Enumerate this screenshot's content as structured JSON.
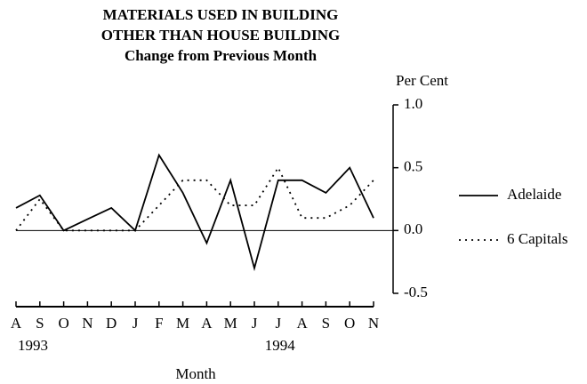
{
  "chart_data": {
    "type": "line",
    "title": "MATERIALS USED IN BUILDING",
    "title_line2": "OTHER THAN HOUSE BUILDING",
    "subtitle": "Change from Previous Month",
    "y_label": "Per Cent",
    "x_label": "Month",
    "categories": [
      "A",
      "S",
      "O",
      "N",
      "D",
      "J",
      "F",
      "M",
      "A",
      "M",
      "J",
      "J",
      "A",
      "S",
      "O",
      "N"
    ],
    "year_labels": [
      "1993",
      null,
      null,
      null,
      null,
      null,
      null,
      null,
      null,
      null,
      null,
      "1994",
      null,
      null,
      null,
      null
    ],
    "series": [
      {
        "name": "Adelaide",
        "color": "#000000",
        "style": "solid",
        "values": [
          0.18,
          0.28,
          0,
          0.09,
          0.18,
          0,
          0.6,
          0.3,
          -0.1,
          0.4,
          -0.3,
          0.4,
          0.4,
          0.3,
          0.5,
          0.1
        ]
      },
      {
        "name": "6 Capitals",
        "color": "#000000",
        "style": "dotted",
        "values": [
          0,
          0.25,
          0,
          0,
          0,
          0,
          0.2,
          0.4,
          0.4,
          0.2,
          0.2,
          0.5,
          0.1,
          0.1,
          0.2,
          0.4
        ]
      }
    ],
    "ylim": [
      -0.5,
      1.0
    ],
    "yticks": [
      {
        "value": 1.0,
        "label": "1.0"
      },
      0.5,
      {
        "value": 0,
        "label": "0.0"
      },
      -0.5
    ],
    "y_axis_side": "right",
    "grid": false,
    "legend": "right"
  }
}
